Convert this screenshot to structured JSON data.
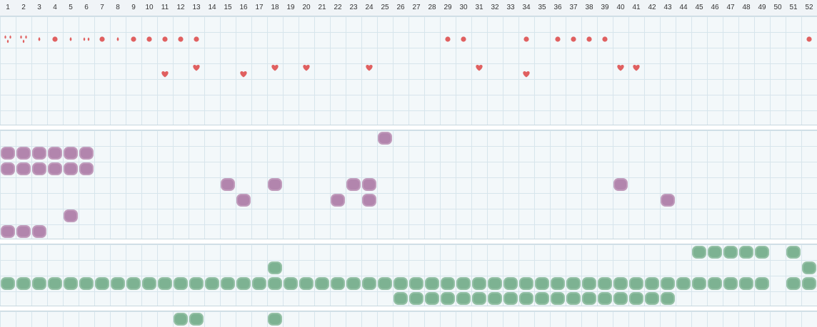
{
  "colors": {
    "red": "#e06060",
    "purple": "#b285ad",
    "green": "#7db292"
  },
  "weeks": [
    "1",
    "2",
    "3",
    "4",
    "5",
    "6",
    "7",
    "8",
    "9",
    "10",
    "11",
    "12",
    "13",
    "14",
    "15",
    "16",
    "17",
    "18",
    "19",
    "20",
    "21",
    "22",
    "23",
    "24",
    "25",
    "26",
    "27",
    "28",
    "29",
    "30",
    "31",
    "32",
    "33",
    "34",
    "35",
    "36",
    "37",
    "38",
    "39",
    "40",
    "41",
    "42",
    "43",
    "44",
    "45",
    "46",
    "47",
    "48",
    "49",
    "50",
    "51",
    "52"
  ],
  "symbols": {
    "row1": [
      {
        "w": 1,
        "icon": "double-drop-icon"
      },
      {
        "w": 2,
        "icon": "double-drop-icon"
      },
      {
        "w": 3,
        "icon": "drop-icon"
      },
      {
        "w": 4,
        "icon": "dot-icon"
      },
      {
        "w": 5,
        "icon": "drop-icon"
      },
      {
        "w": 6,
        "icon": "two-drops-icon"
      },
      {
        "w": 7,
        "icon": "dot-icon"
      },
      {
        "w": 8,
        "icon": "drop-icon"
      },
      {
        "w": 9,
        "icon": "dot-icon"
      },
      {
        "w": 10,
        "icon": "dot-icon"
      },
      {
        "w": 11,
        "icon": "dot-icon"
      },
      {
        "w": 12,
        "icon": "dot-icon"
      },
      {
        "w": 13,
        "icon": "dot-icon"
      },
      {
        "w": 29,
        "icon": "dot-icon"
      },
      {
        "w": 30,
        "icon": "dot-icon"
      },
      {
        "w": 34,
        "icon": "dot-icon"
      },
      {
        "w": 36,
        "icon": "dot-icon"
      },
      {
        "w": 37,
        "icon": "dot-icon"
      },
      {
        "w": 38,
        "icon": "dot-icon"
      },
      {
        "w": 39,
        "icon": "dot-icon"
      },
      {
        "w": 52,
        "icon": "dot-icon"
      }
    ],
    "hearts_high": [
      13,
      18,
      20,
      24,
      31,
      40,
      41
    ],
    "hearts_low": [
      11,
      16,
      34
    ]
  },
  "blobs": {
    "purple": {
      "row0": [
        25
      ],
      "row1": [
        1,
        2,
        3,
        4,
        5,
        6
      ],
      "row2": [
        1,
        2,
        3,
        4,
        5,
        6
      ],
      "row3": [
        15,
        18,
        23,
        24,
        40
      ],
      "row4": [
        16,
        22,
        24,
        43
      ],
      "row5": [
        5
      ],
      "row6": [
        1,
        2,
        3
      ]
    },
    "green": {
      "row0": [
        45,
        46,
        47,
        48,
        49,
        51
      ],
      "row1": [
        18,
        52
      ],
      "row2": [
        1,
        2,
        3,
        4,
        5,
        6,
        7,
        8,
        9,
        10,
        11,
        12,
        13,
        14,
        15,
        16,
        17,
        18,
        19,
        20,
        21,
        22,
        23,
        24,
        25,
        26,
        27,
        28,
        29,
        30,
        31,
        32,
        33,
        34,
        35,
        36,
        37,
        38,
        39,
        40,
        41,
        42,
        43,
        44,
        45,
        46,
        47,
        48,
        49,
        51,
        52
      ],
      "row3": [
        26,
        27,
        28,
        29,
        30,
        31,
        32,
        33,
        34,
        35,
        36,
        37,
        38,
        39,
        40,
        41,
        42,
        43
      ],
      "bottom": [
        12,
        13,
        18
      ]
    }
  }
}
